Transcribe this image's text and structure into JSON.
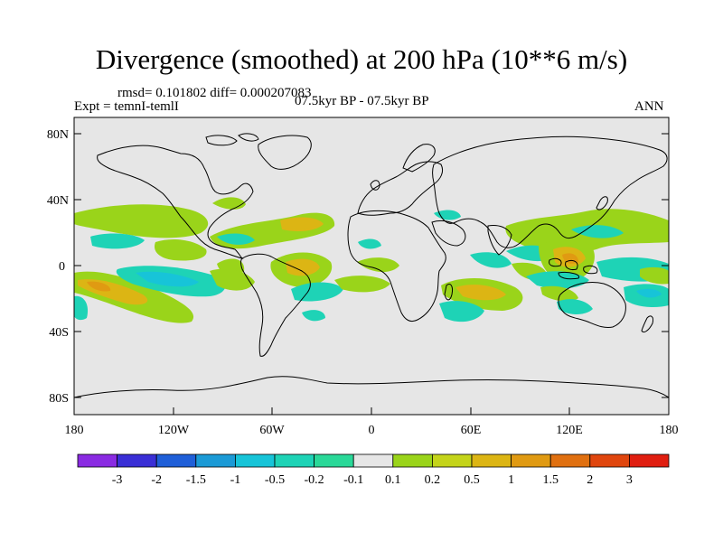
{
  "title": "Divergence (smoothed) at 200 hPa (10**6 m/s)",
  "stats": "rmsd= 0.101802 diff= 0.000207083",
  "experiment": "Expt = temnI-temlI",
  "period": "07.5kyr BP - 07.5kyr BP",
  "season": "ANN",
  "lat_ticks": [
    "80N",
    "40N",
    "0",
    "40S",
    "80S"
  ],
  "lon_ticks": [
    "180",
    "120W",
    "60W",
    "0",
    "60E",
    "120E",
    "180"
  ],
  "colorbar": {
    "colors": [
      "#8a2be2",
      "#3a2fd6",
      "#1f5fd8",
      "#1b9ad6",
      "#17c4d8",
      "#1ed3b6",
      "#2ad898",
      "#e6e6e6",
      "#9ad41a",
      "#c4d41a",
      "#dcb514",
      "#e09a12",
      "#e07010",
      "#e0460e",
      "#e01e10"
    ],
    "labels": [
      "-3",
      "-2",
      "-1.5",
      "-1",
      "-0.5",
      "-0.2",
      "-0.1",
      "0.1",
      "0.2",
      "0.5",
      "1",
      "1.5",
      "2",
      "3"
    ]
  }
}
